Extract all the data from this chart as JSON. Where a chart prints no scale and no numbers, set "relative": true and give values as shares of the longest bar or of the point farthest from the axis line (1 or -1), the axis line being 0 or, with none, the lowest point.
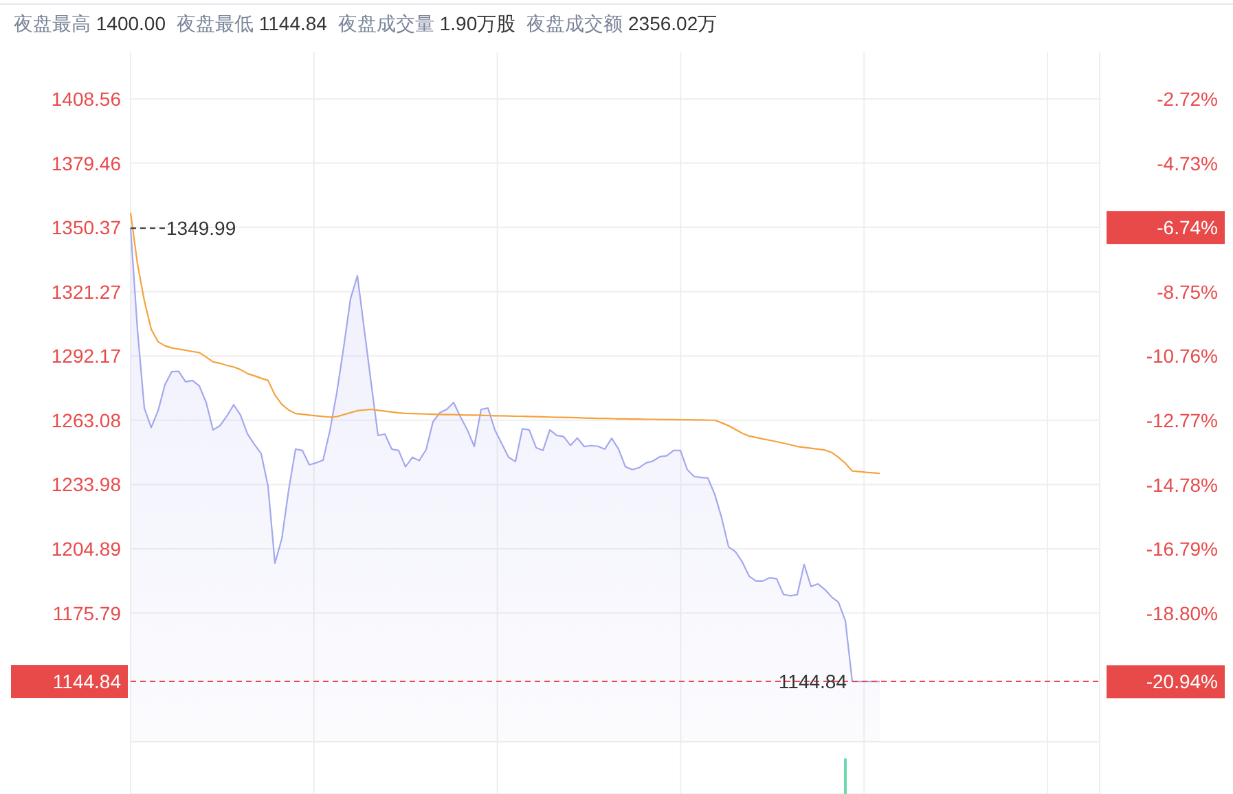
{
  "chart_data": [
    {
      "type": "line",
      "annotations": [
        "夜盘最高 1400.00",
        "夜盘最低 1144.84",
        "夜盘成交量 1.90万股",
        "夜盘成交额 2356.02万"
      ],
      "categories": [
        null,
        null,
        null,
        null,
        null,
        null,
        null,
        null,
        null,
        null,
        null,
        null,
        null,
        null,
        null,
        null,
        null,
        null,
        null,
        null,
        null,
        null,
        null,
        null,
        null,
        null,
        null,
        null,
        null,
        null,
        null,
        null,
        null,
        null,
        null,
        null,
        null,
        null,
        null,
        null,
        null,
        null,
        null,
        null,
        null,
        null,
        null,
        null,
        null,
        null,
        null,
        null,
        null,
        null,
        null,
        null,
        null,
        null,
        null,
        null,
        null,
        null,
        null,
        null,
        null,
        null,
        null,
        null,
        null,
        null,
        null,
        null,
        null,
        null,
        null,
        null,
        null,
        null,
        null,
        null,
        null,
        null,
        null,
        null,
        null,
        null,
        null,
        null,
        null,
        null,
        null,
        null,
        null,
        null,
        null,
        null,
        null,
        null,
        null,
        null,
        null,
        null,
        null,
        null,
        null,
        null,
        null,
        null,
        null,
        null,
        null,
        null,
        null,
        null,
        null,
        null,
        null,
        null,
        null,
        null,
        null,
        null,
        null,
        null,
        null,
        null,
        null,
        null,
        null,
        null,
        null,
        null,
        null,
        null,
        null,
        null,
        null,
        null,
        null,
        null,
        null,
        null
      ],
      "series": [
        {
          "type": "area",
          "color": "#a3a8ee",
          "values": [
            1350.0,
            1304.1,
            1268.6,
            1259.8,
            1267.4,
            1279.2,
            1285.1,
            1285.2,
            1280.5,
            1281.1,
            1278.6,
            1271.1,
            1258.7,
            1260.6,
            1264.9,
            1270.1,
            1265.4,
            1256.9,
            1252.2,
            1248.0,
            1233.2,
            1198.4,
            1209.4,
            1231.5,
            1250.0,
            1249.4,
            1242.9,
            1243.8,
            1245.0,
            1258.4,
            1275.5,
            1296.0,
            1318.1,
            1328.5,
            1304.2,
            1280.0,
            1256.2,
            1256.8,
            1250.0,
            1249.4,
            1242.0,
            1246.3,
            1244.8,
            1249.8,
            1262.4,
            1266.5,
            1268.0,
            1271.1,
            1264.6,
            1258.7,
            1251.2,
            1268.0,
            1268.6,
            1258.7,
            1252.5,
            1246.3,
            1244.4,
            1259.2,
            1258.7,
            1250.7,
            1249.4,
            1258.7,
            1256.2,
            1255.7,
            1251.7,
            1255.0,
            1251.2,
            1251.6,
            1251.3,
            1250.0,
            1254.9,
            1250.0,
            1242.0,
            1240.7,
            1241.6,
            1243.8,
            1244.6,
            1246.6,
            1247.0,
            1249.4,
            1249.4,
            1240.7,
            1237.6,
            1237.2,
            1236.9,
            1229.5,
            1218.9,
            1205.8,
            1203.6,
            1198.9,
            1192.5,
            1190.3,
            1190.3,
            1191.8,
            1191.3,
            1184.2,
            1183.6,
            1184.1,
            1197.8,
            1187.8,
            1189.0,
            1186.5,
            1183.1,
            1180.7,
            1172.3,
            1144.84,
            1144.84,
            1144.84,
            1144.84,
            1144.84,
            null,
            null,
            null,
            null,
            null,
            null,
            null,
            null,
            null,
            null,
            null,
            null,
            null,
            null,
            null,
            null,
            null,
            null,
            null,
            null,
            null,
            null,
            null,
            null,
            null,
            null,
            null,
            null,
            null,
            null,
            null,
            null
          ]
        },
        {
          "color": "#f5a23c",
          "values": [
            1357.0,
            1333.9,
            1317.2,
            1304.3,
            1298.6,
            1296.8,
            1295.8,
            1295.3,
            1294.8,
            1294.2,
            1293.7,
            1291.7,
            1289.5,
            1288.9,
            1287.9,
            1287.2,
            1286.0,
            1284.2,
            1283.2,
            1282.1,
            1281.1,
            1274.5,
            1270.3,
            1267.7,
            1266.1,
            1265.8,
            1265.4,
            1265.1,
            1264.8,
            1264.5,
            1264.7,
            1265.6,
            1266.5,
            1267.4,
            1267.7,
            1268.0,
            1267.6,
            1267.2,
            1266.8,
            1266.4,
            1266.2,
            1266.1,
            1266.0,
            1265.9,
            1265.8,
            1265.7,
            1265.6,
            1265.6,
            1265.5,
            1265.4,
            1265.4,
            1265.3,
            1265.2,
            1265.1,
            1265.1,
            1265.0,
            1264.9,
            1264.9,
            1264.8,
            1264.7,
            1264.6,
            1264.5,
            1264.4,
            1264.4,
            1264.3,
            1264.2,
            1264.1,
            1264.0,
            1263.9,
            1263.9,
            1263.8,
            1263.7,
            1263.7,
            1263.6,
            1263.6,
            1263.5,
            1263.5,
            1263.4,
            1263.4,
            1263.4,
            1263.3,
            1263.3,
            1263.2,
            1263.2,
            1263.1,
            1263.1,
            1261.9,
            1260.6,
            1258.9,
            1257.2,
            1255.9,
            1255.3,
            1254.6,
            1254.0,
            1253.4,
            1252.7,
            1252.0,
            1251.2,
            1250.8,
            1250.4,
            1250.0,
            1249.6,
            1248.5,
            1246.3,
            1243.6,
            1240.1,
            1239.8,
            1239.5,
            1239.3,
            1239.0,
            null,
            null,
            null,
            null,
            null,
            null,
            null,
            null,
            null,
            null,
            null,
            null,
            null,
            null,
            null,
            null,
            null,
            null,
            null,
            null,
            null,
            null,
            null,
            null,
            null,
            null,
            null,
            null,
            null,
            null,
            null,
            null
          ]
        }
      ],
      "ylim": [
        1117.5,
        1429.7
      ],
      "yticks": [
        1408.56,
        1379.46,
        1350.37,
        1321.27,
        1292.17,
        1263.08,
        1233.98,
        1204.89,
        1175.79,
        1144.84
      ],
      "y2lim": [
        -22.82,
        -1.26
      ],
      "y2ticks": [
        {
          "value": -2.72,
          "label": "-2.72%"
        },
        {
          "value": -4.73,
          "label": "-4.73%"
        },
        {
          "value": -6.74,
          "label": "-6.74%"
        },
        {
          "value": -8.75,
          "label": "-8.75%"
        },
        {
          "value": -10.76,
          "label": "-10.76%"
        },
        {
          "value": -12.77,
          "label": "-12.77%"
        },
        {
          "value": -14.78,
          "label": "-14.78%"
        },
        {
          "value": -16.79,
          "label": "-16.79%"
        },
        {
          "value": -18.8,
          "label": "-18.80%"
        },
        {
          "value": -20.94,
          "label": "-20.94%"
        }
      ],
      "ref_lines": [
        {
          "axis": "y",
          "value": 1144.84,
          "label": "1144.84",
          "color": "#e84a4a",
          "line_style": "dashed"
        },
        {
          "axis": "y",
          "value": 1349.99,
          "label": "1349.99",
          "color": "#333333",
          "line_style": "dashed"
        }
      ],
      "grid": true,
      "tick_labels": "y"
    },
    {
      "type": "bar",
      "relative": true,
      "color": "#6fd9ad",
      "categories": [
        null,
        null,
        null,
        null,
        null,
        null,
        null,
        null,
        null,
        null,
        null,
        null,
        null,
        null,
        null,
        null,
        null,
        null,
        null,
        null,
        null,
        null,
        null,
        null,
        null,
        null,
        null,
        null,
        null,
        null,
        null,
        null,
        null,
        null,
        null,
        null,
        null,
        null,
        null,
        null,
        null,
        null,
        null,
        null,
        null,
        null,
        null,
        null,
        null,
        null,
        null,
        null,
        null,
        null,
        null,
        null,
        null,
        null,
        null,
        null,
        null,
        null,
        null,
        null,
        null,
        null,
        null,
        null,
        null,
        null,
        null,
        null,
        null,
        null,
        null,
        null,
        null,
        null,
        null,
        null,
        null,
        null,
        null,
        null,
        null,
        null,
        null,
        null,
        null,
        null,
        null,
        null,
        null,
        null,
        null,
        null,
        null,
        null,
        null,
        null,
        null,
        null,
        null,
        null,
        null,
        null,
        null,
        null,
        null,
        null,
        null,
        null,
        null,
        null,
        null,
        null,
        null,
        null,
        null,
        null,
        null,
        null,
        null,
        null,
        null,
        null,
        null,
        null,
        null,
        null,
        null,
        null,
        null,
        null,
        null,
        null,
        null,
        null,
        null,
        null,
        null,
        null
      ],
      "values": [
        null,
        null,
        null,
        null,
        null,
        null,
        null,
        null,
        null,
        null,
        null,
        null,
        null,
        null,
        null,
        null,
        null,
        null,
        null,
        null,
        null,
        null,
        null,
        null,
        null,
        null,
        null,
        null,
        null,
        null,
        null,
        null,
        null,
        null,
        null,
        null,
        null,
        null,
        null,
        null,
        null,
        null,
        null,
        null,
        null,
        null,
        null,
        null,
        null,
        null,
        null,
        null,
        null,
        null,
        null,
        null,
        null,
        null,
        null,
        null,
        null,
        null,
        null,
        null,
        null,
        null,
        null,
        null,
        null,
        null,
        null,
        null,
        null,
        null,
        null,
        null,
        null,
        null,
        null,
        null,
        null,
        null,
        null,
        null,
        null,
        null,
        null,
        null,
        null,
        null,
        null,
        null,
        null,
        null,
        null,
        null,
        null,
        null,
        null,
        null,
        null,
        null,
        null,
        null,
        1,
        null,
        null,
        null,
        null,
        null,
        null,
        null,
        null,
        null,
        null,
        null,
        null,
        null,
        null,
        null,
        null,
        null,
        null,
        null,
        null,
        null,
        null,
        null,
        null,
        null,
        null,
        null,
        null,
        null,
        null,
        null,
        null,
        null,
        null,
        null,
        null,
        null
      ],
      "grid": true,
      "tick_labels": false
    }
  ]
}
